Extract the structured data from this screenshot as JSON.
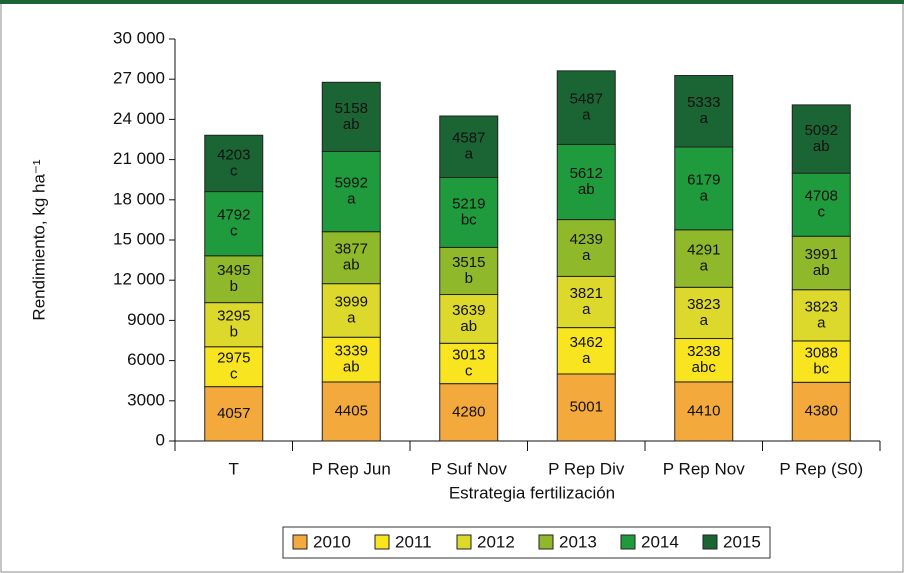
{
  "chart_data": {
    "type": "stacked_bar",
    "x_label": "Estrategia fertilización",
    "y_label": "Rendimiento, kg ha⁻¹",
    "categories": [
      "T",
      "P Rep Jun",
      "P Suf Nov",
      "P Rep Div",
      "P Rep Nov",
      "P Rep (S0)"
    ],
    "series": [
      {
        "name": "2010",
        "color": "#f4a93c",
        "values": [
          4057,
          4405,
          4280,
          5001,
          4410,
          4380
        ]
      },
      {
        "name": "2011",
        "color": "#f8e520",
        "values": [
          2975,
          3339,
          3013,
          3462,
          3238,
          3088
        ],
        "letters": [
          "c",
          "ab",
          "c",
          "a",
          "abc",
          "bc"
        ]
      },
      {
        "name": "2012",
        "color": "#dcd82c",
        "values": [
          3295,
          3999,
          3639,
          3821,
          3823,
          3823
        ],
        "letters": [
          "b",
          "a",
          "ab",
          "a",
          "a",
          "a"
        ]
      },
      {
        "name": "2013",
        "color": "#8fb82b",
        "values": [
          3495,
          3877,
          3515,
          4239,
          4291,
          3991
        ],
        "letters": [
          "b",
          "ab",
          "b",
          "a",
          "a",
          "ab"
        ]
      },
      {
        "name": "2014",
        "color": "#1f9a3c",
        "values": [
          4792,
          5992,
          5219,
          5612,
          6179,
          4708
        ],
        "letters": [
          "c",
          "a",
          "bc",
          "ab",
          "a",
          "c"
        ]
      },
      {
        "name": "2015",
        "color": "#1b6535",
        "values": [
          4203,
          5158,
          4587,
          5487,
          5333,
          5092
        ],
        "letters": [
          "c",
          "ab",
          "a",
          "a",
          "a",
          "ab"
        ]
      }
    ],
    "ylim": [
      0,
      30000
    ],
    "yticks": [
      0,
      3000,
      6000,
      9000,
      {
        "value": 12000,
        "label": "12 000"
      },
      {
        "value": 15000,
        "label": "15 000"
      },
      {
        "value": 18000,
        "label": "18 000"
      },
      {
        "value": 21000,
        "label": "21 000"
      },
      {
        "value": 24000,
        "label": "24 000"
      },
      {
        "value": 27000,
        "label": "27 000"
      },
      {
        "value": 30000,
        "label": "30 000"
      }
    ],
    "legend": "bottom"
  }
}
